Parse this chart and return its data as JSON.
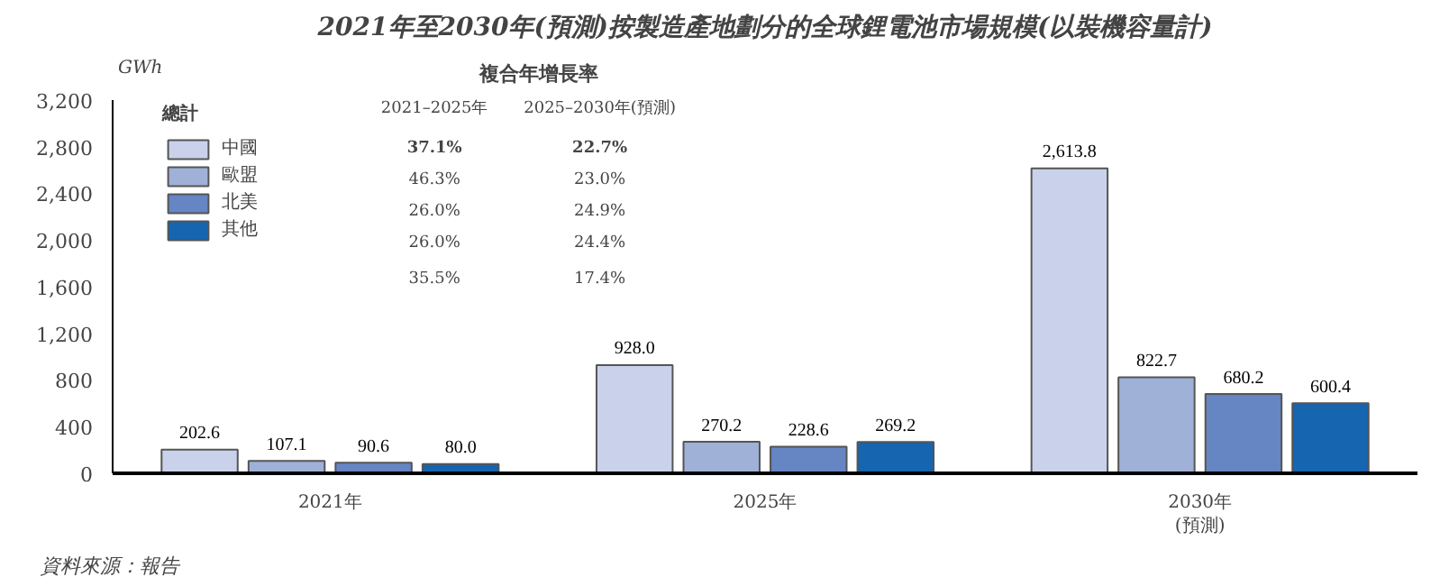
{
  "chart_data": {
    "type": "bar",
    "title": "2021年至2030年(預測)按製造產地劃分的全球鋰電池市場規模(以裝機容量計)",
    "ylabel": "GWh",
    "legend_title": "總計",
    "categories": [
      "2021年",
      "2025年",
      "2030年\n(預測)"
    ],
    "series": [
      {
        "name": "中國",
        "color": "#c9d2ea",
        "values": [
          202.6,
          928.0,
          2613.8
        ],
        "value_labels": [
          "202.6",
          "928.0",
          "2,613.8"
        ]
      },
      {
        "name": "歐盟",
        "color": "#a0b1d8",
        "values": [
          107.1,
          270.2,
          822.7
        ],
        "value_labels": [
          "107.1",
          "270.2",
          "822.7"
        ]
      },
      {
        "name": "北美",
        "color": "#6585c3",
        "values": [
          90.6,
          228.6,
          680.2
        ],
        "value_labels": [
          "90.6",
          "228.6",
          "680.2"
        ]
      },
      {
        "name": "其他",
        "color": "#1565b0",
        "values": [
          80.0,
          269.2,
          600.4
        ],
        "value_labels": [
          "80.0",
          "269.2",
          "600.4"
        ]
      }
    ],
    "ylim": [
      0,
      3200
    ],
    "yticks": [
      {
        "value": 0,
        "label": "0"
      },
      {
        "value": 400,
        "label": "400"
      },
      {
        "value": 800,
        "label": "800"
      },
      {
        "value": 1200,
        "label": "1,200"
      },
      {
        "value": 1600,
        "label": "1,600"
      },
      {
        "value": 2000,
        "label": "2,000"
      },
      {
        "value": 2400,
        "label": "2,400"
      },
      {
        "value": 2800,
        "label": "2,800"
      },
      {
        "value": 3200,
        "label": "3,200"
      }
    ],
    "legend": "top left",
    "grid": false,
    "annotations": [
      "複合年增長率",
      "2021–2025年",
      "2025–2030年(預測)",
      "37.1%",
      "22.7%",
      "46.3%",
      "23.0%",
      "26.0%",
      "24.9%",
      "26.0%",
      "24.4%",
      "35.5%",
      "17.4%",
      "資料來源：報告"
    ]
  }
}
